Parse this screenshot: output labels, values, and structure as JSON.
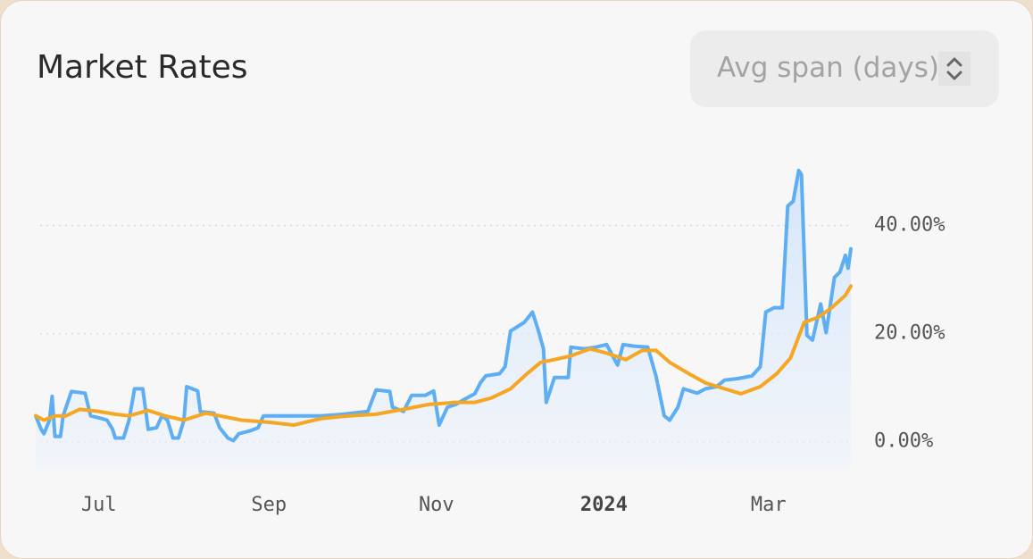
{
  "controls": {
    "avg_span_placeholder": "Avg span (days)"
  },
  "chart_data": {
    "type": "line",
    "title": "Market Rates",
    "xlim": [
      0,
      297
    ],
    "xticks": [
      {
        "value": 23,
        "label": "Jul"
      },
      {
        "value": 85,
        "label": "Sep"
      },
      {
        "value": 146,
        "label": "Nov"
      },
      {
        "value": 207,
        "label": "2024"
      },
      {
        "value": 267,
        "label": "Mar"
      }
    ],
    "ylim": [
      -5,
      52
    ],
    "yticks": [
      {
        "value": 0,
        "label": "0.00%"
      },
      {
        "value": 20,
        "label": "20.00%"
      },
      {
        "value": 40,
        "label": "40.00%"
      }
    ],
    "grid": true,
    "series": [
      {
        "color": "#5eaef3",
        "fill": true,
        "x": [
          0,
          2,
          3,
          5,
          6,
          7,
          9,
          10,
          13,
          18,
          20,
          24,
          26,
          28,
          29,
          32,
          34,
          36,
          39,
          41,
          44,
          46,
          48,
          50,
          52,
          54,
          55,
          59,
          60,
          65,
          67,
          70,
          72,
          74,
          78,
          81,
          83,
          88,
          94,
          104,
          112,
          121,
          124,
          129,
          130,
          134,
          137,
          142,
          145,
          147,
          150,
          153,
          156,
          160,
          162,
          164,
          169,
          171,
          173,
          178,
          181,
          183,
          185,
          186,
          189,
          194,
          195,
          200,
          204,
          208,
          212,
          214,
          218,
          223,
          226,
          229,
          231,
          234,
          236,
          241,
          244,
          248,
          251,
          256,
          261,
          264,
          266,
          269,
          272,
          274,
          276,
          278,
          279,
          281,
          283,
          286,
          288,
          291,
          293,
          295,
          296,
          297
        ],
        "values": [
          4.8,
          2.3,
          1.5,
          4,
          8.4,
          1,
          1,
          4.8,
          9.3,
          9,
          4.8,
          4.3,
          4,
          2.3,
          0.7,
          0.7,
          4,
          9.8,
          9.8,
          2.3,
          2.6,
          4.8,
          4,
          0.7,
          0.7,
          4,
          10.2,
          9.4,
          5.6,
          5.3,
          2.6,
          0.7,
          0.2,
          1.5,
          2,
          2.6,
          4.8,
          4.8,
          4.8,
          4.8,
          5.1,
          5.6,
          9.6,
          9.3,
          6.4,
          5.6,
          8.6,
          8.6,
          9.4,
          3.1,
          6.4,
          6.9,
          7.8,
          8.9,
          10.9,
          12.2,
          12.6,
          13.9,
          20.5,
          22.1,
          24,
          20.8,
          17.2,
          7.3,
          11.9,
          11.9,
          17.5,
          17.2,
          17.5,
          18,
          14.2,
          18,
          17.7,
          17.5,
          12.2,
          4.8,
          4,
          6.4,
          9.8,
          9,
          9.8,
          10.2,
          11.4,
          11.7,
          12.2,
          13.9,
          24,
          24.8,
          24.8,
          43.6,
          44.5,
          50.2,
          49.4,
          19.7,
          18.8,
          25.5,
          20.2,
          30.4,
          31.4,
          34.5,
          32.1,
          35.7
        ]
      },
      {
        "color": "#f5a623",
        "fill": false,
        "x": [
          0,
          3,
          7,
          11,
          16,
          23,
          29,
          34,
          41,
          47,
          54,
          62,
          67,
          75,
          85,
          94,
          104,
          114,
          124,
          134,
          143,
          153,
          160,
          166,
          173,
          179,
          184,
          189,
          195,
          202,
          208,
          215,
          221,
          226,
          231,
          238,
          244,
          251,
          257,
          264,
          270,
          275,
          280,
          285,
          290,
          295,
          297
        ],
        "values": [
          4.8,
          4,
          4.8,
          4.8,
          6,
          5.6,
          5.1,
          4.8,
          5.8,
          4.8,
          4,
          5.3,
          4.8,
          4,
          3.6,
          3.1,
          4.3,
          4.8,
          5.1,
          6,
          6.9,
          7.3,
          7.3,
          8.1,
          9.8,
          12.6,
          14.7,
          15.2,
          15.9,
          17.2,
          16.4,
          15.2,
          16.9,
          16.9,
          14.7,
          12.6,
          10.9,
          9.8,
          8.9,
          10.2,
          12.6,
          15.5,
          22.1,
          23,
          24.8,
          27.1,
          28.8
        ]
      }
    ]
  }
}
